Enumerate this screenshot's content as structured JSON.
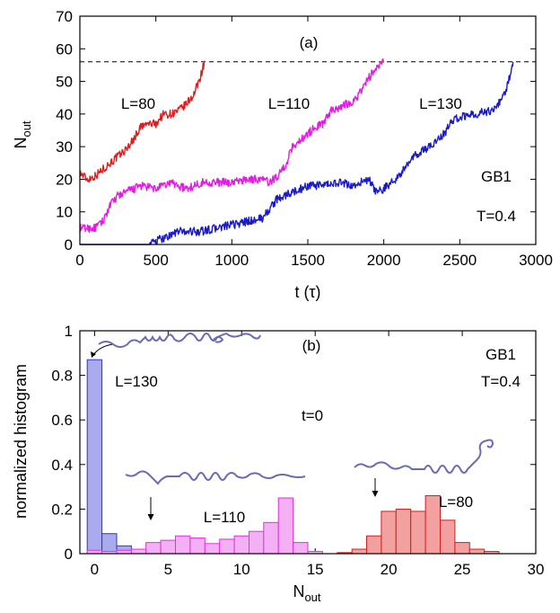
{
  "chart_data": [
    {
      "type": "line",
      "panel_label": "(a)",
      "xlabel": "t (τ)",
      "ylabel_main": "N",
      "ylabel_sub": "out",
      "xlim": [
        0,
        3000
      ],
      "ylim": [
        0,
        70
      ],
      "xticks": [
        0,
        500,
        1000,
        1500,
        2000,
        2500,
        3000
      ],
      "yticks": [
        0,
        10,
        20,
        30,
        40,
        50,
        60,
        70
      ],
      "reference_line": {
        "y": 56,
        "style": "dashed"
      },
      "annotations": {
        "protein": "GB1",
        "temperature": "T=0.4"
      },
      "series": [
        {
          "name": "L=80",
          "color": "#e8191b",
          "x": [
            0,
            50,
            100,
            150,
            200,
            250,
            300,
            350,
            400,
            450,
            500,
            550,
            600,
            650,
            700,
            750,
            790,
            820
          ],
          "y": [
            22,
            20,
            21,
            23,
            25,
            27,
            29,
            32,
            36,
            37,
            37,
            40,
            40,
            41,
            43,
            46,
            51,
            56
          ]
        },
        {
          "name": "L=110",
          "color": "#e61ae6",
          "x": [
            0,
            50,
            100,
            150,
            200,
            250,
            300,
            400,
            500,
            600,
            700,
            800,
            900,
            1000,
            1100,
            1200,
            1250,
            1300,
            1350,
            1400,
            1450,
            1500,
            1550,
            1600,
            1650,
            1700,
            1750,
            1800,
            1850,
            1900,
            1950,
            2000
          ],
          "y": [
            5,
            5,
            5,
            7,
            12,
            15,
            16,
            18,
            17,
            19,
            17,
            19,
            19,
            19,
            20,
            20,
            19,
            21,
            24,
            30,
            32,
            34,
            36,
            37,
            41,
            42,
            43,
            44,
            47,
            51,
            54,
            56
          ]
        },
        {
          "name": "L=130",
          "color": "#1a1acc",
          "x": [
            0,
            200,
            400,
            450,
            500,
            600,
            650,
            700,
            800,
            900,
            1000,
            1100,
            1200,
            1250,
            1300,
            1350,
            1400,
            1450,
            1500,
            1600,
            1700,
            1800,
            1900,
            1950,
            2000,
            2100,
            2200,
            2300,
            2400,
            2450,
            2500,
            2600,
            2700,
            2750,
            2800,
            2850
          ],
          "y": [
            0,
            0,
            0,
            0,
            1,
            3,
            4,
            4,
            4,
            5,
            6,
            7,
            8,
            11,
            14,
            15,
            16,
            17,
            18,
            18,
            19,
            18,
            20,
            16,
            17,
            21,
            27,
            30,
            34,
            38,
            39,
            40,
            41,
            43,
            46,
            56
          ]
        }
      ]
    },
    {
      "type": "bar",
      "panel_label": "(b)",
      "xlabel_main": "N",
      "xlabel_sub": "out",
      "ylabel": "normalized histogram",
      "xlim": [
        -1,
        30
      ],
      "ylim": [
        0,
        1
      ],
      "xticks": [
        0,
        5,
        10,
        15,
        20,
        25,
        30
      ],
      "yticks": [
        0,
        0.2,
        0.4,
        0.6,
        0.8,
        1
      ],
      "annotations": {
        "time": "t=0",
        "protein": "GB1",
        "temperature": "T=0.4"
      },
      "series": [
        {
          "name": "L=130",
          "fill": "#aaaaee",
          "stroke": "#3333cc",
          "x": [
            0,
            1,
            2,
            3
          ],
          "values": [
            0.87,
            0.09,
            0.035,
            0.01
          ]
        },
        {
          "name": "L=110",
          "fill": "#f4b0f4",
          "stroke": "#e030e0",
          "x": [
            0,
            1,
            2,
            3,
            4,
            5,
            6,
            7,
            8,
            9,
            10,
            11,
            12,
            13,
            14,
            15
          ],
          "values": [
            0.015,
            0.01,
            0.015,
            0.02,
            0.05,
            0.06,
            0.08,
            0.07,
            0.045,
            0.065,
            0.08,
            0.1,
            0.14,
            0.25,
            0.05,
            0.01
          ]
        },
        {
          "name": "L=80",
          "fill": "#f2a0a0",
          "stroke": "#d02020",
          "x": [
            17,
            18,
            19,
            20,
            21,
            22,
            23,
            24,
            25,
            26,
            27
          ],
          "values": [
            0.005,
            0.02,
            0.08,
            0.19,
            0.2,
            0.19,
            0.26,
            0.15,
            0.05,
            0.02,
            0.01
          ]
        }
      ]
    }
  ]
}
